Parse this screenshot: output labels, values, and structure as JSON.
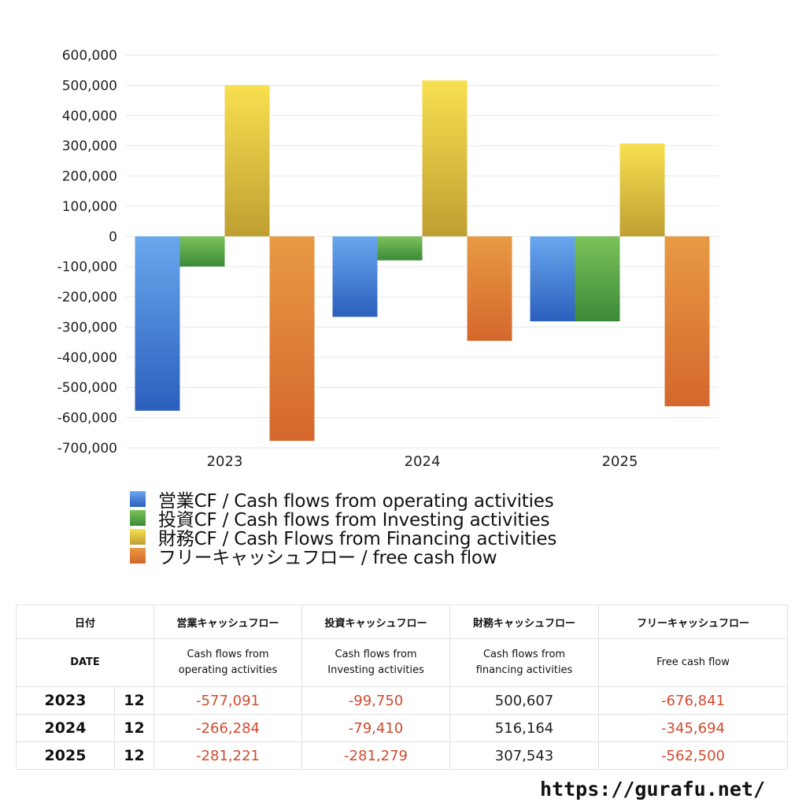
{
  "chart_data": {
    "type": "bar",
    "categories": [
      "2023",
      "2024",
      "2025"
    ],
    "series": [
      {
        "name": "営業CF / Cash flows from operating activities",
        "values": [
          -577091,
          -266284,
          -281221
        ],
        "color_top": "#69a7ee",
        "color_bottom": "#2c5fbd"
      },
      {
        "name": "投資CF / Cash flows from Investing activities",
        "values": [
          -99750,
          -79410,
          -281279
        ],
        "color_top": "#7cc25a",
        "color_bottom": "#3a8a38"
      },
      {
        "name": "財務CF / Cash Flows from Financing activities",
        "values": [
          500607,
          516164,
          307543
        ],
        "color_top": "#f8e050",
        "color_bottom": "#bf9f32"
      },
      {
        "name": "フリーキャッシュフロー / free cash flow",
        "values": [
          -676841,
          -345694,
          -562500
        ],
        "color_top": "#e89a44",
        "color_bottom": "#d4672c"
      }
    ],
    "yticks": [
      "600,000",
      "500,000",
      "400,000",
      "300,000",
      "200,000",
      "100,000",
      "0",
      "-100,000",
      "-200,000",
      "-300,000",
      "-400,000",
      "-500,000",
      "-600,000",
      "-700,000"
    ],
    "ylim": [
      -700000,
      600000
    ],
    "grid": true,
    "legend_position": "bottom"
  },
  "table": {
    "headers_jp": [
      "日付",
      "営業キャッシュフロー",
      "投資キャッシュフロー",
      "財務キャッシュフロー",
      "フリーキャッシュフロー"
    ],
    "headers_en": [
      "DATE",
      "Cash flows from\noperating activities",
      "Cash flows from\nInvesting activities",
      "Cash flows from\nfinancing activities",
      "Free cash flow"
    ],
    "rows": [
      {
        "year": "2023",
        "month": "12",
        "op": "-577,091",
        "inv": "-99,750",
        "fin": "500,607",
        "fcf": "-676,841"
      },
      {
        "year": "2024",
        "month": "12",
        "op": "-266,284",
        "inv": "-79,410",
        "fin": "516,164",
        "fcf": "-345,694"
      },
      {
        "year": "2025",
        "month": "12",
        "op": "-281,221",
        "inv": "-281,279",
        "fin": "307,543",
        "fcf": "-562,500"
      }
    ]
  },
  "site": "https://gurafu.net/"
}
